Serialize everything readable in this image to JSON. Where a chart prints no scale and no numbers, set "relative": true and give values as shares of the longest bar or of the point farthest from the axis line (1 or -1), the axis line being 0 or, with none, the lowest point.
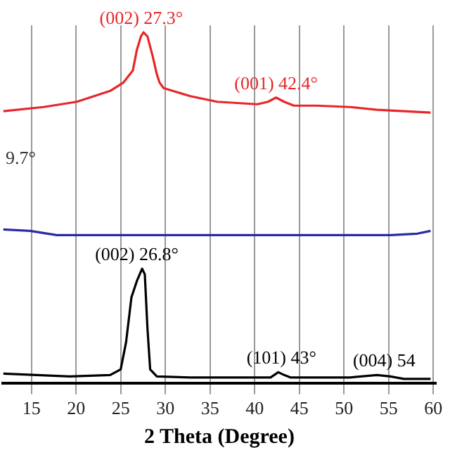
{
  "chart_data": {
    "type": "line",
    "xlabel": "2 Theta (Degree)",
    "relative": true,
    "grid": "x",
    "xlim": [
      11.8,
      60.3
    ],
    "xticks": [
      15,
      20,
      25,
      30,
      35,
      40,
      45,
      50,
      55,
      60
    ],
    "series": [
      {
        "color": "#e8262a",
        "x": [
          11.86,
          16.35,
          20.08,
          23.82,
          25.31,
          26.36,
          26.81,
          27.26,
          27.56,
          28.0,
          28.6,
          29.05,
          29.35,
          29.8,
          32.8,
          35.8,
          40.3,
          41.5,
          42.4,
          43.3,
          44.4,
          47.0,
          50.7,
          53.7,
          56.7,
          59.7
        ],
        "values": [
          0.775,
          0.787,
          0.802,
          0.833,
          0.857,
          0.891,
          0.95,
          0.988,
          1,
          0.988,
          0.93,
          0.88,
          0.857,
          0.841,
          0.818,
          0.802,
          0.795,
          0.802,
          0.814,
          0.802,
          0.791,
          0.791,
          0.787,
          0.779,
          0.775,
          0.771
        ]
      },
      {
        "color": "#2a2aa8",
        "x": [
          11.86,
          14.85,
          17.84,
          20.83,
          26.81,
          34.3,
          41.78,
          49.25,
          55.23,
          58.22,
          59.7
        ],
        "values": [
          0.438,
          0.434,
          0.422,
          0.422,
          0.422,
          0.422,
          0.422,
          0.422,
          0.422,
          0.426,
          0.434
        ]
      },
      {
        "color": "#000000",
        "x": [
          11.86,
          19.3,
          23.82,
          25.0,
          25.6,
          26.2,
          26.81,
          27.4,
          27.7,
          28.0,
          28.3,
          29.05,
          32.8,
          41.78,
          42.65,
          43.3,
          44.0,
          50.7,
          53.7,
          55.2,
          56.7,
          59.7
        ],
        "values": [
          0.027,
          0.019,
          0.023,
          0.039,
          0.116,
          0.244,
          0.291,
          0.326,
          0.31,
          0.155,
          0.039,
          0.019,
          0.016,
          0.016,
          0.031,
          0.023,
          0.016,
          0.016,
          0.023,
          0.019,
          0.012,
          0.012
        ]
      }
    ],
    "annotations": [
      {
        "text": "(002) 27.3°",
        "x": 27.3,
        "y": 1
      },
      {
        "text": "(001) 42.4°",
        "x": 42.4,
        "y": 0.814
      },
      "9.7°",
      {
        "text": "(002) 26.8°",
        "x": 26.8,
        "y": 0.326
      },
      {
        "text": "(101) 43°",
        "x": 43,
        "y": 0.031
      },
      {
        "text": "(004) 54",
        "x": 54.5,
        "y": 0.023
      }
    ]
  }
}
